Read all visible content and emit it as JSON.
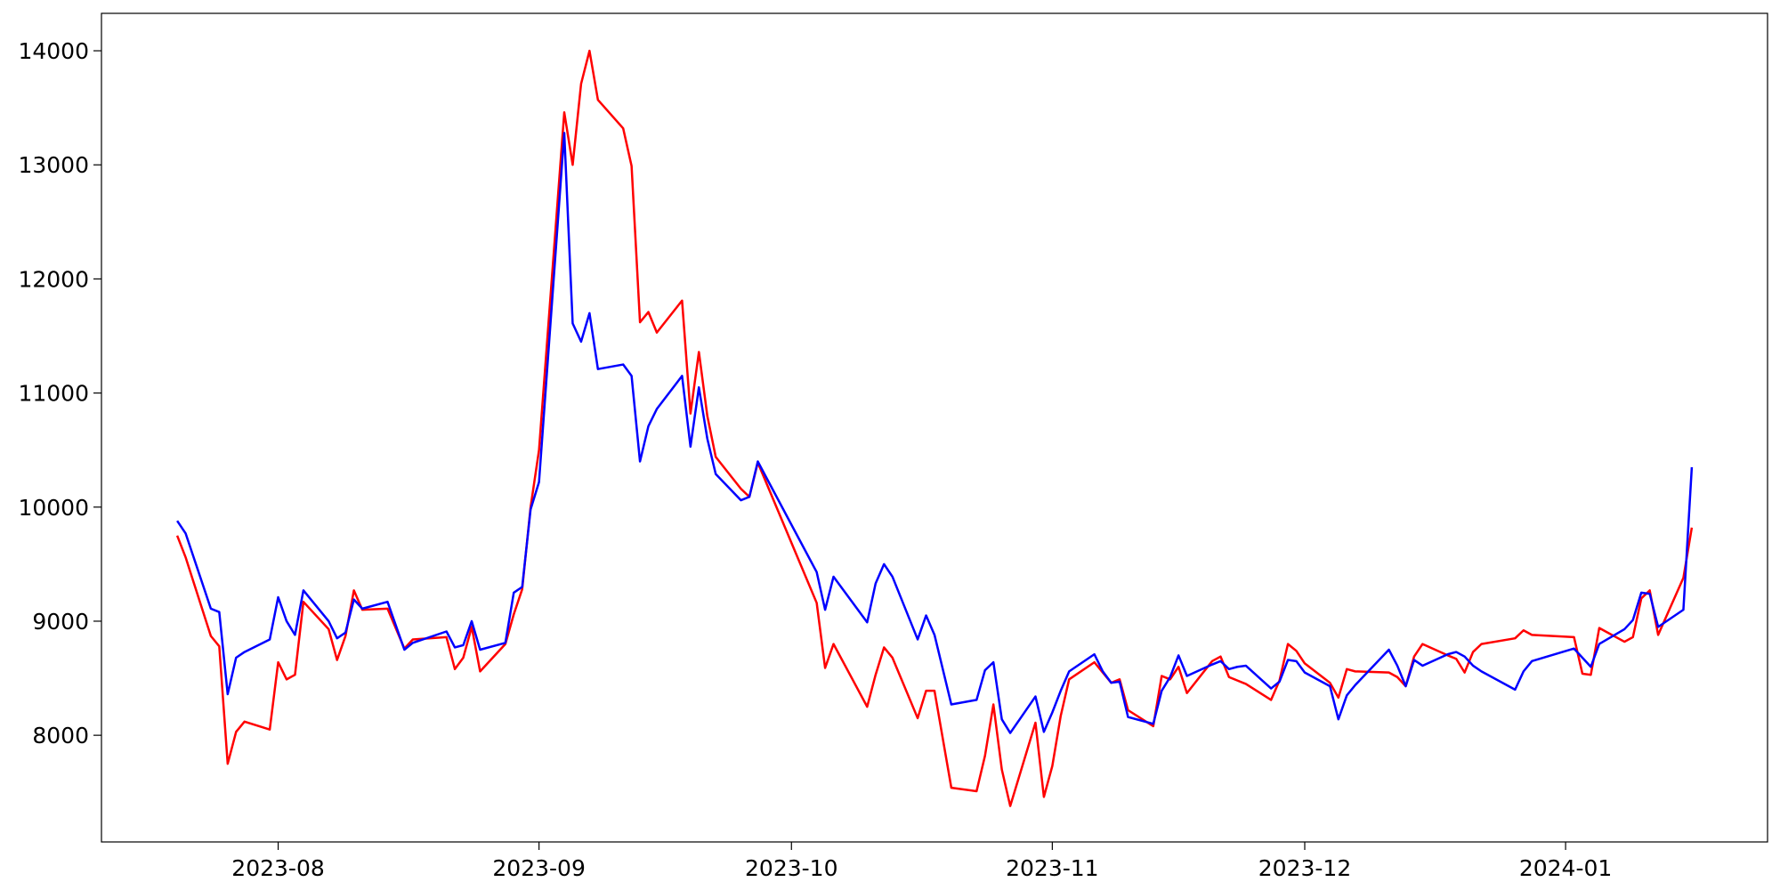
{
  "chart_data": {
    "type": "line",
    "x": [
      "2023-07-20",
      "2023-07-21",
      "2023-07-24",
      "2023-07-25",
      "2023-07-26",
      "2023-07-27",
      "2023-07-28",
      "2023-07-31",
      "2023-08-01",
      "2023-08-02",
      "2023-08-03",
      "2023-08-04",
      "2023-08-07",
      "2023-08-08",
      "2023-08-09",
      "2023-08-10",
      "2023-08-11",
      "2023-08-14",
      "2023-08-16",
      "2023-08-17",
      "2023-08-21",
      "2023-08-22",
      "2023-08-23",
      "2023-08-24",
      "2023-08-25",
      "2023-08-28",
      "2023-08-29",
      "2023-08-30",
      "2023-08-31",
      "2023-09-01",
      "2023-09-04",
      "2023-09-05",
      "2023-09-06",
      "2023-09-07",
      "2023-09-08",
      "2023-09-11",
      "2023-09-12",
      "2023-09-13",
      "2023-09-14",
      "2023-09-15",
      "2023-09-18",
      "2023-09-19",
      "2023-09-20",
      "2023-09-21",
      "2023-09-22",
      "2023-09-25",
      "2023-09-26",
      "2023-09-27",
      "2023-10-04",
      "2023-10-05",
      "2023-10-06",
      "2023-10-10",
      "2023-10-11",
      "2023-10-12",
      "2023-10-13",
      "2023-10-16",
      "2023-10-17",
      "2023-10-18",
      "2023-10-20",
      "2023-10-23",
      "2023-10-24",
      "2023-10-25",
      "2023-10-26",
      "2023-10-27",
      "2023-10-30",
      "2023-10-31",
      "2023-11-01",
      "2023-11-02",
      "2023-11-03",
      "2023-11-06",
      "2023-11-07",
      "2023-11-08",
      "2023-11-09",
      "2023-11-10",
      "2023-11-13",
      "2023-11-14",
      "2023-11-15",
      "2023-11-16",
      "2023-11-17",
      "2023-11-20",
      "2023-11-21",
      "2023-11-22",
      "2023-11-23",
      "2023-11-24",
      "2023-11-27",
      "2023-11-28",
      "2023-11-29",
      "2023-11-30",
      "2023-12-01",
      "2023-12-04",
      "2023-12-05",
      "2023-12-06",
      "2023-12-07",
      "2023-12-11",
      "2023-12-12",
      "2023-12-13",
      "2023-12-14",
      "2023-12-15",
      "2023-12-18",
      "2023-12-19",
      "2023-12-20",
      "2023-12-21",
      "2023-12-22",
      "2023-12-26",
      "2023-12-27",
      "2023-12-28",
      "2024-01-02",
      "2024-01-03",
      "2024-01-04",
      "2024-01-05",
      "2024-01-08",
      "2024-01-09",
      "2024-01-10",
      "2024-01-11",
      "2024-01-12",
      "2024-01-15",
      "2024-01-16"
    ],
    "series": [
      {
        "color": "#ff0000",
        "values": [
          9750,
          9560,
          8870,
          8780,
          7750,
          8030,
          8120,
          8050,
          8640,
          8490,
          8530,
          9170,
          8930,
          8660,
          8870,
          9270,
          9100,
          9110,
          8760,
          8840,
          8860,
          8580,
          8680,
          8950,
          8560,
          8800,
          9060,
          9280,
          10000,
          10500,
          13460,
          13000,
          13710,
          14000,
          13570,
          13320,
          12990,
          11620,
          11710,
          11530,
          11810,
          10820,
          11360,
          10800,
          10440,
          10160,
          10090,
          10390,
          9160,
          8590,
          8800,
          8250,
          8530,
          8770,
          8680,
          8150,
          8390,
          8390,
          7540,
          7510,
          7820,
          8270,
          7700,
          7380,
          8110,
          7460,
          7730,
          8170,
          8490,
          8640,
          8550,
          8460,
          8490,
          8220,
          8080,
          8520,
          8490,
          8600,
          8370,
          8650,
          8690,
          8510,
          8480,
          8450,
          8310,
          8480,
          8800,
          8740,
          8630,
          8460,
          8330,
          8580,
          8560,
          8550,
          8510,
          8430,
          8690,
          8800,
          8700,
          8670,
          8550,
          8730,
          8800,
          8850,
          8920,
          8880,
          8860,
          8540,
          8530,
          8940,
          8820,
          8860,
          9200,
          9270,
          8880,
          9380,
          9820
        ]
      },
      {
        "color": "#0000ff",
        "values": [
          9880,
          9770,
          9110,
          9080,
          8360,
          8680,
          8730,
          8840,
          9210,
          9000,
          8880,
          9270,
          9000,
          8850,
          8900,
          9190,
          9110,
          9170,
          8750,
          8810,
          8910,
          8770,
          8790,
          9000,
          8750,
          8810,
          9250,
          9300,
          9980,
          10220,
          13280,
          11610,
          11450,
          11700,
          11210,
          11250,
          11150,
          10400,
          10710,
          10860,
          11150,
          10530,
          11050,
          10600,
          10290,
          10060,
          10090,
          10400,
          9430,
          9100,
          9390,
          8990,
          9330,
          9500,
          9390,
          8840,
          9050,
          8880,
          8270,
          8310,
          8570,
          8640,
          8140,
          8020,
          8340,
          8030,
          8200,
          8390,
          8560,
          8710,
          8560,
          8460,
          8470,
          8160,
          8100,
          8390,
          8510,
          8700,
          8520,
          8620,
          8650,
          8580,
          8600,
          8610,
          8410,
          8470,
          8660,
          8650,
          8550,
          8430,
          8140,
          8350,
          8440,
          8750,
          8610,
          8430,
          8660,
          8610,
          8710,
          8730,
          8690,
          8610,
          8560,
          8400,
          8560,
          8650,
          8760,
          8680,
          8600,
          8800,
          8930,
          9010,
          9250,
          9240,
          8950,
          9100,
          10350
        ]
      }
    ],
    "xlim": [
      "2023-07-11",
      "2024-01-25"
    ],
    "xticks": [
      {
        "value": "2023-08-01",
        "label": "2023-08"
      },
      {
        "value": "2023-09-01",
        "label": "2023-09"
      },
      {
        "value": "2023-10-01",
        "label": "2023-10"
      },
      {
        "value": "2023-11-01",
        "label": "2023-11"
      },
      {
        "value": "2023-12-01",
        "label": "2023-12"
      },
      {
        "value": "2024-01-01",
        "label": "2024-01"
      }
    ],
    "ylim": [
      7065,
      14328
    ],
    "yticks": [
      8000,
      9000,
      10000,
      11000,
      12000,
      13000,
      14000
    ]
  }
}
